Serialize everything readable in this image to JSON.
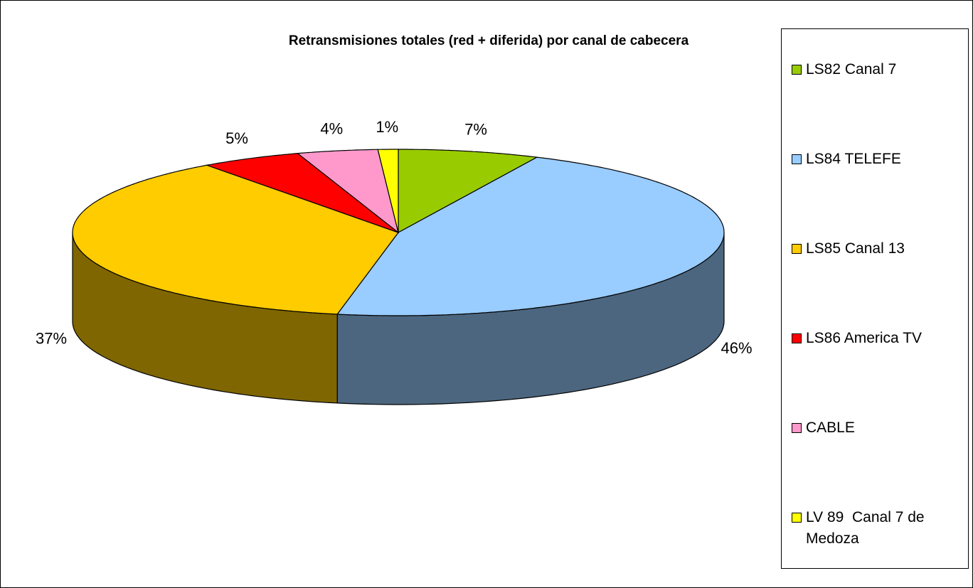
{
  "chart_data": {
    "type": "pie",
    "title": "Retransmisiones totales (red + diferida) por canal de cabecera",
    "categories": [
      "LS82 Canal 7",
      "LS84 TELEFE",
      "LS85 Canal 13",
      "LS86 America TV",
      "CABLE",
      "LV 89  Canal 7 de Medoza"
    ],
    "values": [
      7,
      46,
      37,
      5,
      4,
      1
    ],
    "value_labels": [
      "7%",
      "46%",
      "37%",
      "5%",
      "4%",
      "1%"
    ],
    "colors": [
      "#99cc00",
      "#99ccff",
      "#ffcc00",
      "#ff0000",
      "#ff99cc",
      "#ffff00"
    ],
    "legend": "right"
  }
}
